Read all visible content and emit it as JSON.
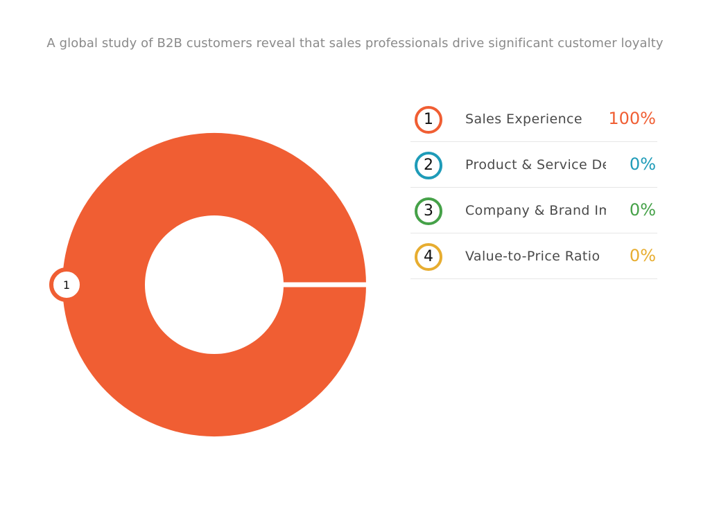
{
  "subtitle": "A global study of B2B customers reveal that sales professionals drive significant customer loyalty",
  "chart_data": {
    "type": "pie",
    "subtitle": "A global study of B2B customers reveal that sales professionals drive significant customer loyalty",
    "slices": [
      {
        "marker": "1",
        "label": "Sales Experience",
        "value": 100,
        "value_label": "100%",
        "color": "#f05e33"
      },
      {
        "marker": "2",
        "label": "Product & Service Delivery",
        "value": 0,
        "value_label": "0%",
        "color": "#1e9bb8"
      },
      {
        "marker": "3",
        "label": "Company & Brand Impact",
        "value": 0,
        "value_label": "0%",
        "color": "#45a148"
      },
      {
        "marker": "4",
        "label": "Value-to-Price Ratio",
        "value": 0,
        "value_label": "0%",
        "color": "#e7ad30"
      }
    ],
    "legend_position": "right"
  }
}
